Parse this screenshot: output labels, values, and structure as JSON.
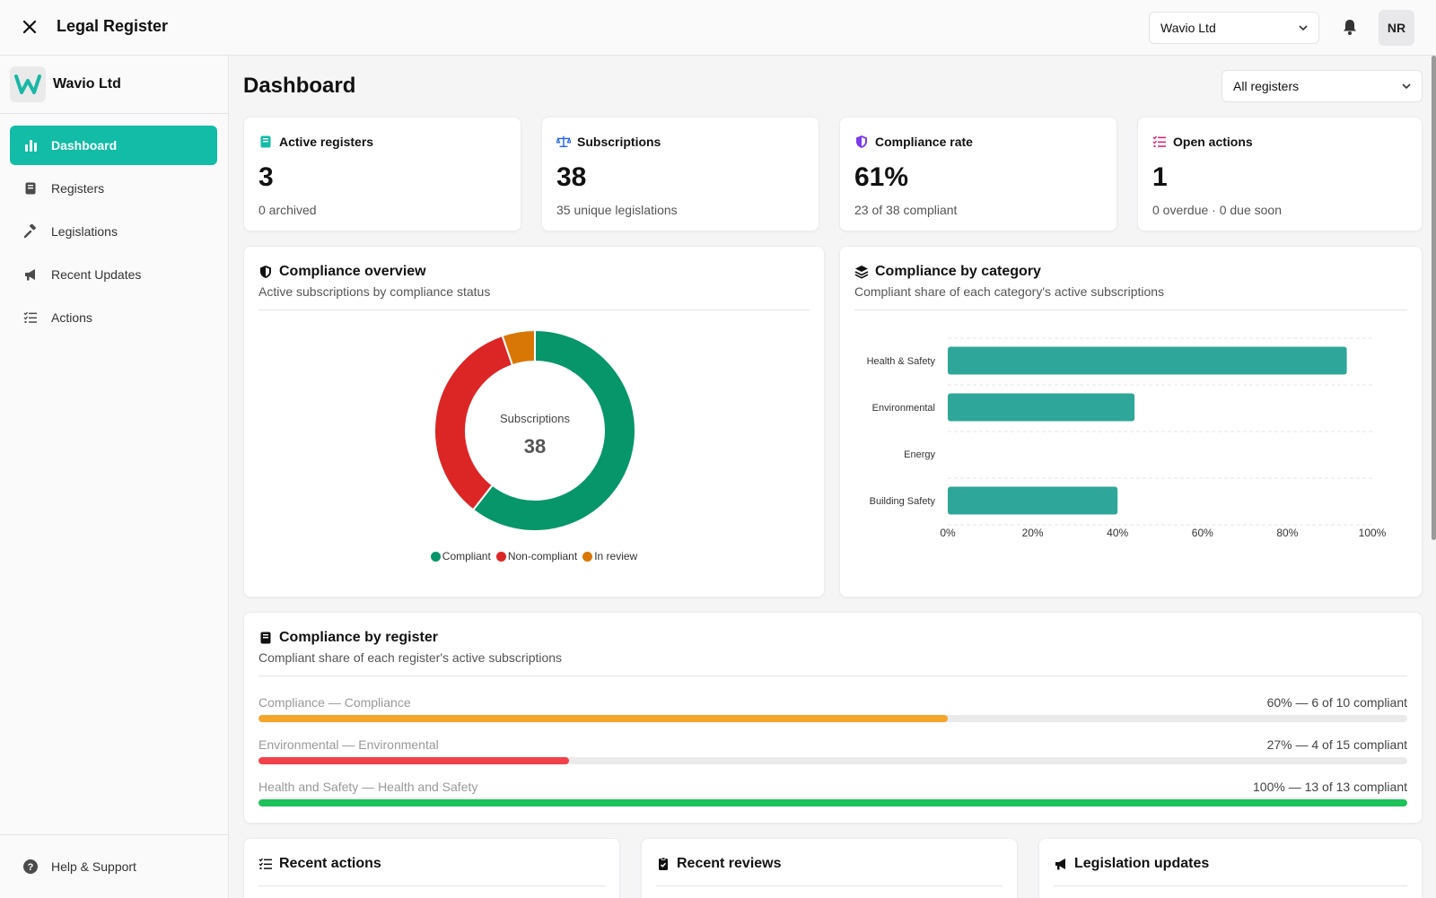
{
  "topbar": {
    "title": "Legal Register",
    "org_select": "Wavio Ltd",
    "avatar": "NR"
  },
  "sidebar": {
    "org_name": "Wavio Ltd",
    "items": [
      {
        "label": "Dashboard",
        "icon": "bar-chart-icon",
        "active": true
      },
      {
        "label": "Registers",
        "icon": "book-icon"
      },
      {
        "label": "Legislations",
        "icon": "gavel-icon"
      },
      {
        "label": "Recent Updates",
        "icon": "megaphone-icon"
      },
      {
        "label": "Actions",
        "icon": "checklist-icon"
      }
    ],
    "help": "Help & Support"
  },
  "main": {
    "title": "Dashboard",
    "register_filter": "All registers",
    "stats": [
      {
        "title": "Active registers",
        "value": "3",
        "sub": "0 archived",
        "icon": "book-icon",
        "color": "#12bca7"
      },
      {
        "title": "Subscriptions",
        "value": "38",
        "sub": "35 unique legislations",
        "icon": "scales-icon",
        "color": "#2563eb"
      },
      {
        "title": "Compliance rate",
        "value": "61%",
        "sub": "23 of 38 compliant",
        "icon": "shield-icon",
        "color": "#7c3aed"
      },
      {
        "title": "Open actions",
        "value": "1",
        "sub": "0 overdue · 0 due soon",
        "icon": "checklist-icon",
        "color": "#e11d74"
      }
    ],
    "overview": {
      "title": "Compliance overview",
      "subtitle": "Active subscriptions by compliance status",
      "center_label": "Subscriptions",
      "center_value": "38"
    },
    "category": {
      "title": "Compliance by category",
      "subtitle": "Compliant share of each category's active subscriptions"
    },
    "by_register": {
      "title": "Compliance by register",
      "subtitle": "Compliant share of each register's active subscriptions",
      "rows": [
        {
          "label": "Compliance — Compliance",
          "value": "60% — 6 of 10 compliant",
          "pct": 60,
          "color": "#f4a52c"
        },
        {
          "label": "Environmental — Environmental",
          "value": "27% — 4 of 15 compliant",
          "pct": 27,
          "color": "#f2414a"
        },
        {
          "label": "Health and Safety — Health and Safety",
          "value": "100% — 13 of 13 compliant",
          "pct": 100,
          "color": "#1dc25a"
        }
      ]
    },
    "bottom_cards": [
      {
        "title": "Recent actions",
        "icon": "checklist-icon"
      },
      {
        "title": "Recent reviews",
        "icon": "clipboard-check-icon"
      },
      {
        "title": "Legislation updates",
        "icon": "megaphone-icon"
      }
    ]
  },
  "chart_data": [
    {
      "type": "pie",
      "categories": [
        "Compliant",
        "Non-compliant",
        "In review"
      ],
      "values": [
        23,
        13,
        2
      ],
      "colors": [
        "#079669",
        "#dc2626",
        "#d97706"
      ],
      "legend": "bottom"
    },
    {
      "type": "bar",
      "orientation": "horizontal",
      "categories": [
        "Health & Safety",
        "Environmental",
        "Energy",
        "Building Safety"
      ],
      "values": [
        94,
        44,
        0,
        40
      ],
      "xlim": [
        0,
        100
      ],
      "xticks": [
        "0%",
        "20%",
        "40%",
        "60%",
        "80%",
        "100%"
      ],
      "color": "#2fa69a",
      "grid": true
    }
  ]
}
